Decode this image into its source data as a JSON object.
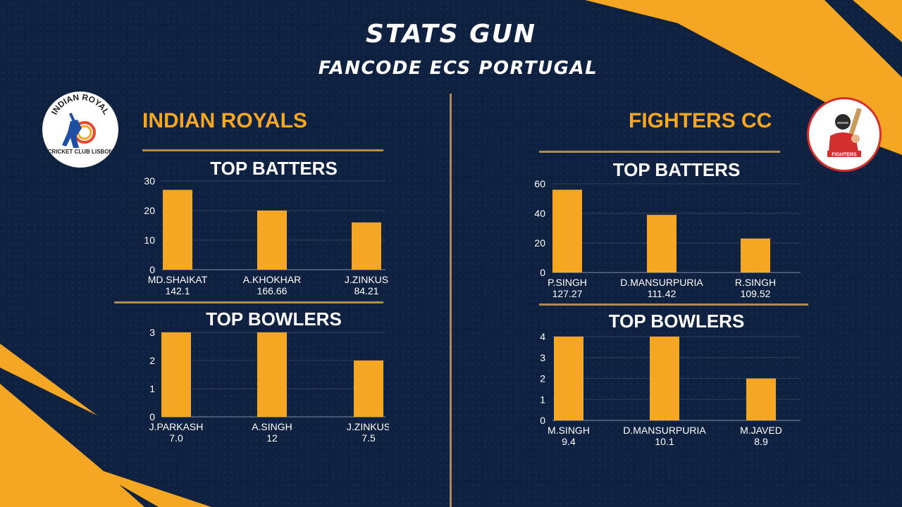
{
  "header": {
    "title": "STATS GUN",
    "subtitle": "FANCODE ECS PORTUGAL"
  },
  "colors": {
    "background": "#0f2140",
    "accent": "#f5a623",
    "rule": "#b08a4f",
    "fighters_red": "#d32f2f"
  },
  "teams": {
    "left": {
      "name": "INDIAN ROYALS",
      "logo_icon": "indian-royal-cricket-club-lisbon-logo",
      "logo_text_top": "INDIAN ROYAL",
      "logo_text_bottom": "CRICKET CLUB LISBON"
    },
    "right": {
      "name": "FIGHTERS CC",
      "logo_icon": "fighters-logo",
      "logo_banner": "FIGHTERS"
    }
  },
  "chart_data": [
    {
      "type": "bar",
      "team": "INDIAN ROYALS",
      "title": "TOP BATTERS",
      "categories": [
        "MD.SHAIKAT",
        "A.KHOKHAR",
        "J.ZINKUS"
      ],
      "values": [
        27,
        20,
        16
      ],
      "sublabels": [
        "142.1",
        "166.66",
        "84.21"
      ],
      "yticks": [
        0,
        10,
        20,
        30
      ],
      "ylim": [
        0,
        30
      ],
      "grid": true
    },
    {
      "type": "bar",
      "team": "INDIAN ROYALS",
      "title": "TOP BOWLERS",
      "categories": [
        "J.PARKASH",
        "A.SINGH",
        "J.ZINKUS"
      ],
      "values": [
        3,
        3,
        2
      ],
      "sublabels": [
        "7.0",
        "12",
        "7.5"
      ],
      "yticks": [
        0,
        1,
        2,
        3
      ],
      "ylim": [
        0,
        3
      ],
      "grid": true
    },
    {
      "type": "bar",
      "team": "FIGHTERS CC",
      "title": "TOP BATTERS",
      "categories": [
        "P.SINGH",
        "D.MANSURPURIA",
        "R.SINGH"
      ],
      "values": [
        56,
        39,
        23
      ],
      "sublabels": [
        "127.27",
        "111.42",
        "109.52"
      ],
      "yticks": [
        0,
        20,
        40,
        60
      ],
      "ylim": [
        0,
        60
      ],
      "grid": true
    },
    {
      "type": "bar",
      "team": "FIGHTERS CC",
      "title": "TOP BOWLERS",
      "categories": [
        "M.SINGH",
        "D.MANSURPURIA",
        "M.JAVED"
      ],
      "values": [
        4,
        4,
        2
      ],
      "sublabels": [
        "9.4",
        "10.1",
        "8.9"
      ],
      "yticks": [
        0,
        1,
        2,
        3,
        4
      ],
      "ylim": [
        0,
        4
      ],
      "grid": true
    }
  ]
}
